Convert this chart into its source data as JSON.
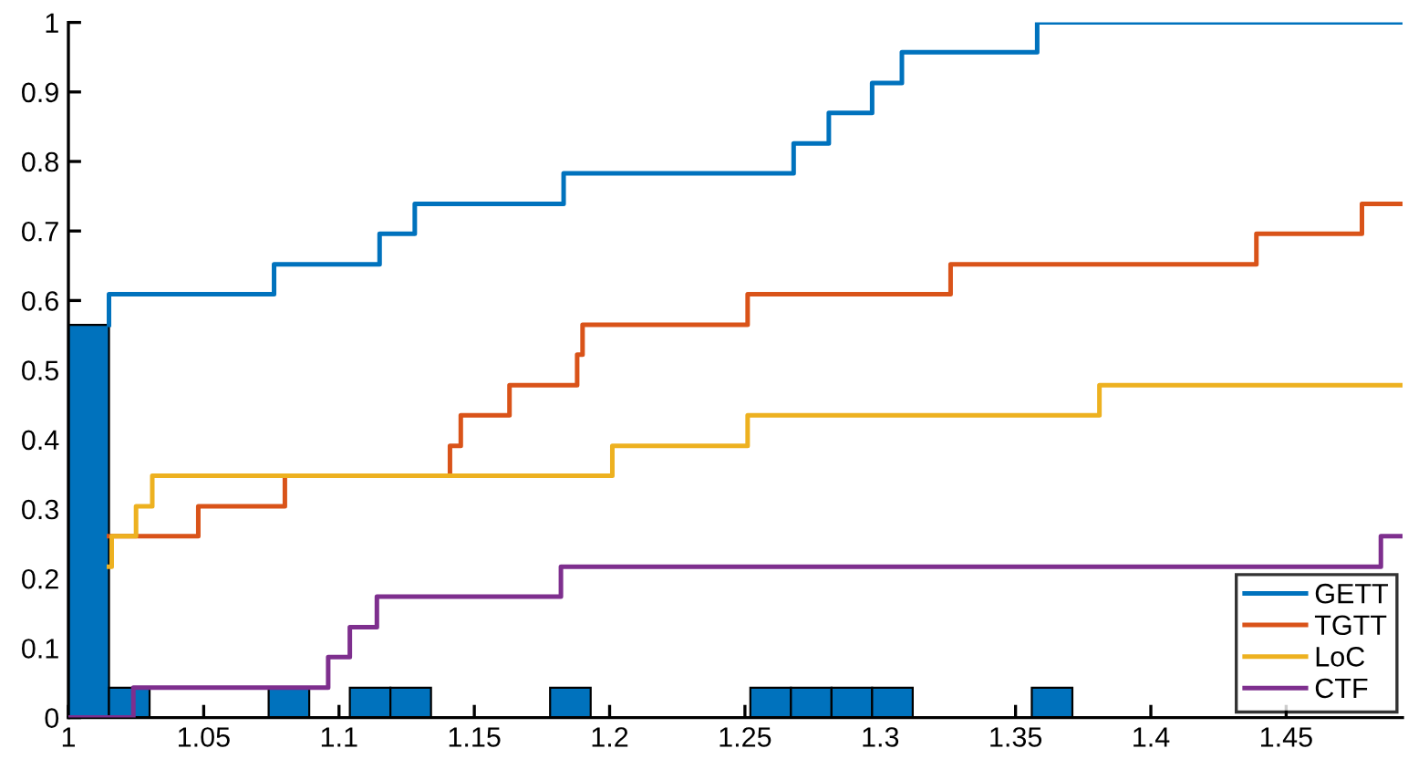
{
  "chart_data": {
    "type": "histogram",
    "color": "#0072bd",
    "bins": [
      1.0,
      1.015,
      1.03,
      1.074,
      1.089,
      1.104,
      1.119,
      1.134,
      1.178,
      1.193,
      1.252,
      1.267,
      1.282,
      1.297,
      1.312,
      1.356,
      1.371
    ],
    "values": [
      0.565,
      0.043,
      0,
      0.043,
      0,
      0.043,
      0.043,
      0,
      0.043,
      0,
      0.043,
      0.043,
      0.043,
      0.043,
      0,
      0.043
    ],
    "series": [
      {
        "name": "GETT",
        "type": "step",
        "color": "#0072bd",
        "x": [
          1.015,
          1.015,
          1.076,
          1.115,
          1.128,
          1.183,
          1.268,
          1.281,
          1.297,
          1.308,
          1.358,
          1.493
        ],
        "values": [
          0.565,
          0.609,
          0.652,
          0.696,
          0.739,
          0.783,
          0.826,
          0.87,
          0.913,
          0.957,
          1,
          1
        ]
      },
      {
        "name": "TGTT",
        "type": "step",
        "color": "#d95319",
        "x": [
          1.015,
          1.048,
          1.08,
          1.141,
          1.145,
          1.163,
          1.188,
          1.19,
          1.251,
          1.326,
          1.439,
          1.478,
          1.493
        ],
        "values": [
          0.261,
          0.304,
          0.348,
          0.391,
          0.435,
          0.478,
          0.522,
          0.565,
          0.609,
          0.652,
          0.696,
          0.739,
          0.739
        ]
      },
      {
        "name": "LoC",
        "type": "step",
        "color": "#edb120",
        "x": [
          1.015,
          1.016,
          1.025,
          1.031,
          1.201,
          1.251,
          1.381,
          1.493
        ],
        "values": [
          0.217,
          0.261,
          0.304,
          0.348,
          0.391,
          0.435,
          0.478,
          0.478
        ]
      },
      {
        "name": "CTF",
        "type": "step",
        "color": "#7e2f8e",
        "x": [
          1,
          1.024,
          1.096,
          1.104,
          1.114,
          1.182,
          1.485,
          1.493
        ],
        "values": [
          0,
          0.043,
          0.087,
          0.13,
          0.174,
          0.217,
          0.261,
          0.261
        ]
      }
    ],
    "xlim": [
      1,
      1.493
    ],
    "ylim": [
      0,
      1
    ],
    "xticks": [
      1,
      1.05,
      1.1,
      1.15,
      1.2,
      1.25,
      1.3,
      1.35,
      1.4,
      1.45
    ],
    "yticks": [
      0,
      0.1,
      0.2,
      0.3,
      0.4,
      0.5,
      0.6,
      0.7,
      0.8,
      0.9,
      1
    ],
    "legend": "bottom right",
    "grid": false
  }
}
